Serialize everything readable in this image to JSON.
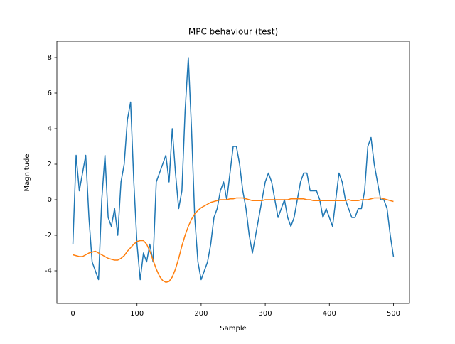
{
  "chart_data": {
    "type": "line",
    "title": "MPC behaviour (test)",
    "xlabel": "Sample",
    "ylabel": "Magnitude",
    "x": [
      0,
      5,
      10,
      15,
      20,
      25,
      30,
      35,
      40,
      45,
      50,
      55,
      60,
      65,
      70,
      75,
      80,
      85,
      90,
      95,
      100,
      105,
      110,
      115,
      120,
      125,
      130,
      135,
      140,
      145,
      150,
      155,
      160,
      165,
      170,
      175,
      180,
      185,
      190,
      195,
      200,
      205,
      210,
      215,
      220,
      225,
      230,
      235,
      240,
      245,
      250,
      255,
      260,
      265,
      270,
      275,
      280,
      285,
      290,
      295,
      300,
      305,
      310,
      315,
      320,
      325,
      330,
      335,
      340,
      345,
      350,
      355,
      360,
      365,
      370,
      375,
      380,
      385,
      390,
      395,
      400,
      405,
      410,
      415,
      420,
      425,
      430,
      435,
      440,
      445,
      450,
      455,
      460,
      465,
      470,
      475,
      480,
      485,
      490,
      495,
      500
    ],
    "series": [
      {
        "color": "#1f77b4",
        "values": [
          -2.5,
          2.5,
          0.5,
          1.5,
          2.5,
          -1,
          -3.5,
          -4,
          -4.5,
          0,
          2.5,
          -1,
          -1.5,
          -0.5,
          -2,
          1,
          2,
          4.5,
          5.5,
          1,
          -2.5,
          -4.5,
          -3,
          -3.5,
          -2.5,
          -3.5,
          1,
          1.5,
          2,
          2.5,
          1,
          4,
          1.5,
          -0.5,
          0.5,
          5,
          8,
          4,
          -1,
          -3.5,
          -4.5,
          -4,
          -3.5,
          -2.5,
          -1,
          -0.5,
          0.5,
          1,
          0,
          1.5,
          3,
          3,
          2,
          0.5,
          -0.5,
          -2,
          -3,
          -2,
          -1,
          0,
          1,
          1.5,
          1,
          0,
          -1,
          -0.5,
          0,
          -1,
          -1.5,
          -1,
          0,
          1,
          1.5,
          1.5,
          0.5,
          0.5,
          0.5,
          0,
          -1,
          -0.5,
          -1,
          -1.5,
          0,
          1.5,
          1,
          0,
          -0.5,
          -1,
          -1,
          -0.5,
          -0.5,
          0.5,
          3,
          3.5,
          2,
          1,
          0,
          0,
          -0.5,
          -2,
          -3.2
        ]
      },
      {
        "color": "#ff7f0e",
        "values": [
          -3.1,
          -3.15,
          -3.2,
          -3.2,
          -3.1,
          -3,
          -2.95,
          -2.9,
          -3,
          -3.1,
          -3.2,
          -3.3,
          -3.35,
          -3.4,
          -3.4,
          -3.3,
          -3.15,
          -2.9,
          -2.7,
          -2.5,
          -2.35,
          -2.3,
          -2.3,
          -2.5,
          -2.9,
          -3.4,
          -3.9,
          -4.3,
          -4.55,
          -4.65,
          -4.6,
          -4.35,
          -3.9,
          -3.3,
          -2.6,
          -2,
          -1.5,
          -1.1,
          -0.8,
          -0.6,
          -0.45,
          -0.35,
          -0.25,
          -0.15,
          -0.1,
          -0.05,
          0,
          0,
          0,
          0.05,
          0.05,
          0.1,
          0.1,
          0.1,
          0.05,
          0,
          -0.05,
          -0.05,
          -0.05,
          -0.05,
          0,
          0,
          0,
          0,
          0,
          0,
          0,
          0,
          0.05,
          0.05,
          0.05,
          0.05,
          0.05,
          0,
          0,
          -0.05,
          -0.05,
          -0.05,
          -0.05,
          -0.05,
          -0.05,
          -0.05,
          -0.05,
          -0.05,
          -0.05,
          -0.05,
          0,
          -0.05,
          -0.05,
          -0.05,
          0,
          0,
          0,
          0.05,
          0.1,
          0.1,
          0.1,
          0.05,
          0,
          -0.05,
          -0.1
        ]
      }
    ],
    "xlim": [
      -25,
      525
    ],
    "ylim": [
      -5.84,
      8.92
    ],
    "xticks": [
      0,
      100,
      200,
      300,
      400,
      500
    ],
    "yticks": [
      -4,
      -2,
      0,
      2,
      4,
      6,
      8
    ]
  }
}
